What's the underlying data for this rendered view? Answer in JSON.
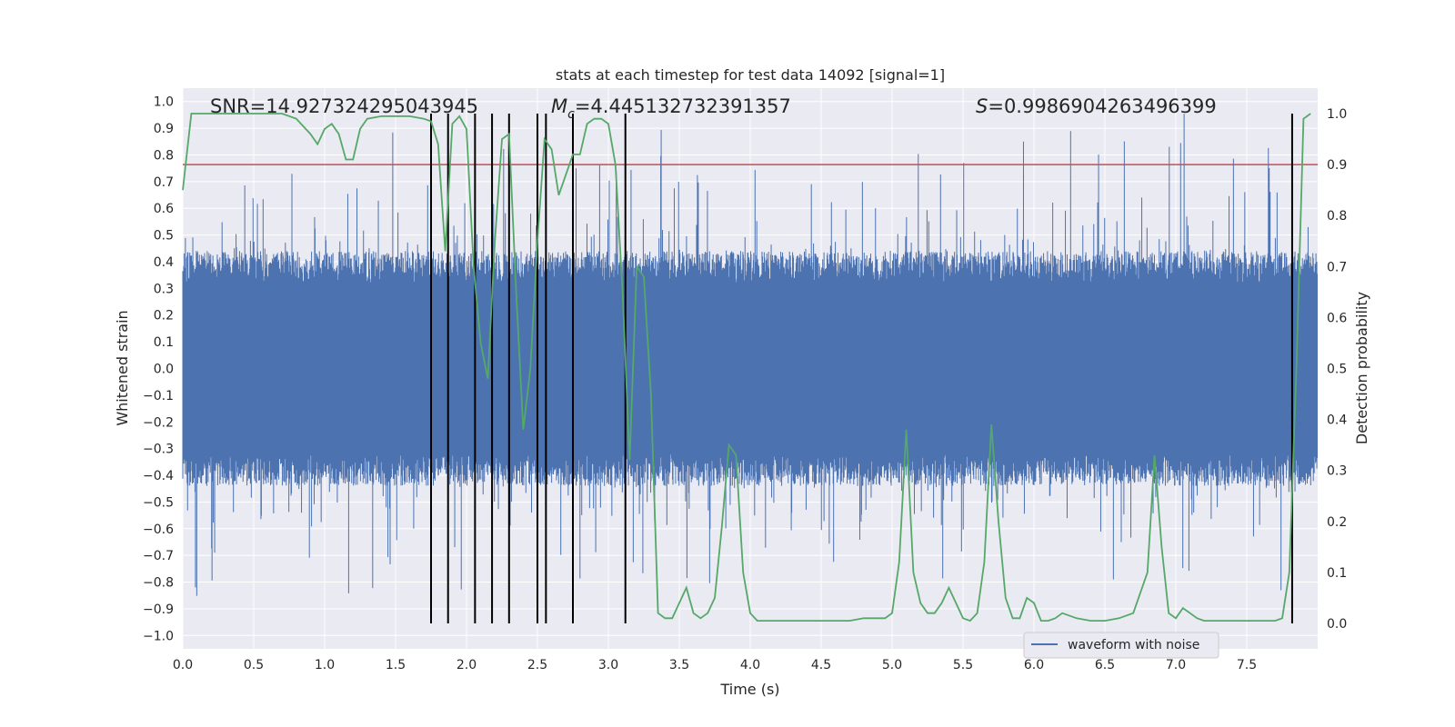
{
  "chart_data": {
    "type": "line",
    "title": "stats at each timestep for test data 14092 [signal=1]",
    "xlabel": "Time (s)",
    "ylabel": "Whitened strain",
    "ylabel_right": "Detection probability",
    "xlim": [
      0,
      8
    ],
    "ylim": [
      -1.05,
      1.05
    ],
    "ylim_right": [
      -0.05,
      1.05
    ],
    "x_ticks": [
      0.0,
      0.5,
      1.0,
      1.5,
      2.0,
      2.5,
      3.0,
      3.5,
      4.0,
      4.5,
      5.0,
      5.5,
      6.0,
      6.5,
      7.0,
      7.5
    ],
    "x_tick_labels": [
      "0.0",
      "0.5",
      "1.0",
      "1.5",
      "2.0",
      "2.5",
      "3.0",
      "3.5",
      "4.0",
      "4.5",
      "5.0",
      "5.5",
      "6.0",
      "6.5",
      "7.0",
      "7.5"
    ],
    "y_ticks": [
      1.0,
      0.9,
      0.8,
      0.7,
      0.6,
      0.5,
      0.4,
      0.3,
      0.2,
      0.1,
      0.0,
      -0.1,
      -0.2,
      -0.3,
      -0.4,
      -0.5,
      -0.6,
      -0.7,
      -0.8,
      -0.9,
      -1.0
    ],
    "y_tick_labels": [
      "1.0",
      "0.9",
      "0.8",
      "0.7",
      "0.6",
      "0.5",
      "0.4",
      "0.3",
      "0.2",
      "0.1",
      "0.0",
      "−0.1",
      "−0.2",
      "−0.3",
      "−0.4",
      "−0.5",
      "−0.6",
      "−0.7",
      "−0.8",
      "−0.9",
      "−1.0"
    ],
    "y_right_ticks": [
      1.0,
      0.9,
      0.8,
      0.7,
      0.6,
      0.5,
      0.4,
      0.3,
      0.2,
      0.1,
      0.0
    ],
    "y_right_tick_labels": [
      "1.0",
      "0.9",
      "0.8",
      "0.7",
      "0.6",
      "0.5",
      "0.4",
      "0.3",
      "0.2",
      "0.1",
      "0.0"
    ],
    "annotations": {
      "snr": "SNR=14.927324295043945",
      "mc_symbol": "M",
      "mc_subscript": "c",
      "mc_value": "=4.445132732391357",
      "s_symbol": "S",
      "s_value": "=0.9986904263496399"
    },
    "threshold": {
      "value": 0.9,
      "axis": "right",
      "color": "#c44e52"
    },
    "event_lines": [
      1.75,
      1.87,
      2.06,
      2.18,
      2.3,
      2.5,
      2.56,
      2.75,
      3.12,
      7.82
    ],
    "legend": {
      "label": "waveform with noise",
      "placement": "lower-right"
    },
    "series": [
      {
        "name": "waveform with noise",
        "axis": "left",
        "color": "#4c72b0",
        "style": "dense-noise",
        "envelope_typical": 0.4,
        "envelope_peak_max": 1.0,
        "envelope_peak_min": -0.94
      },
      {
        "name": "detection probability",
        "axis": "right",
        "color": "#55a868",
        "x": [
          0.0,
          0.06,
          0.3,
          0.7,
          0.8,
          0.9,
          0.95,
          1.0,
          1.05,
          1.1,
          1.15,
          1.2,
          1.25,
          1.3,
          1.4,
          1.6,
          1.7,
          1.75,
          1.8,
          1.85,
          1.9,
          1.95,
          2.0,
          2.05,
          2.1,
          2.15,
          2.2,
          2.25,
          2.3,
          2.35,
          2.4,
          2.45,
          2.5,
          2.55,
          2.6,
          2.65,
          2.7,
          2.75,
          2.8,
          2.85,
          2.9,
          2.95,
          3.0,
          3.05,
          3.1,
          3.15,
          3.2,
          3.25,
          3.3,
          3.35,
          3.4,
          3.45,
          3.5,
          3.55,
          3.6,
          3.65,
          3.7,
          3.75,
          3.8,
          3.85,
          3.9,
          3.95,
          4.0,
          4.05,
          4.1,
          4.2,
          4.5,
          4.7,
          4.8,
          4.9,
          4.95,
          5.0,
          5.05,
          5.1,
          5.15,
          5.2,
          5.25,
          5.3,
          5.35,
          5.4,
          5.45,
          5.5,
          5.55,
          5.6,
          5.65,
          5.7,
          5.75,
          5.8,
          5.85,
          5.9,
          5.95,
          6.0,
          6.05,
          6.1,
          6.15,
          6.2,
          6.3,
          6.4,
          6.5,
          6.6,
          6.7,
          6.8,
          6.85,
          6.9,
          6.95,
          7.0,
          7.05,
          7.1,
          7.15,
          7.2,
          7.3,
          7.4,
          7.5,
          7.6,
          7.7,
          7.75,
          7.8,
          7.85,
          7.9,
          7.95
        ],
        "y": [
          0.85,
          1.0,
          1.0,
          1.0,
          0.99,
          0.96,
          0.94,
          0.97,
          0.98,
          0.96,
          0.91,
          0.91,
          0.97,
          0.99,
          0.995,
          0.995,
          0.99,
          0.985,
          0.94,
          0.73,
          0.98,
          0.995,
          0.97,
          0.7,
          0.55,
          0.48,
          0.75,
          0.95,
          0.96,
          0.65,
          0.38,
          0.5,
          0.75,
          0.95,
          0.93,
          0.84,
          0.88,
          0.92,
          0.92,
          0.98,
          0.99,
          0.99,
          0.98,
          0.9,
          0.65,
          0.32,
          0.7,
          0.68,
          0.45,
          0.02,
          0.01,
          0.01,
          0.04,
          0.07,
          0.02,
          0.01,
          0.02,
          0.05,
          0.19,
          0.35,
          0.33,
          0.1,
          0.02,
          0.005,
          0.005,
          0.005,
          0.005,
          0.005,
          0.01,
          0.01,
          0.01,
          0.02,
          0.12,
          0.38,
          0.1,
          0.04,
          0.02,
          0.02,
          0.04,
          0.07,
          0.04,
          0.01,
          0.005,
          0.02,
          0.12,
          0.39,
          0.2,
          0.05,
          0.01,
          0.01,
          0.05,
          0.04,
          0.005,
          0.005,
          0.01,
          0.02,
          0.01,
          0.005,
          0.005,
          0.01,
          0.02,
          0.1,
          0.33,
          0.15,
          0.02,
          0.01,
          0.03,
          0.02,
          0.01,
          0.005,
          0.005,
          0.005,
          0.005,
          0.005,
          0.005,
          0.01,
          0.1,
          0.5,
          0.99,
          1.0
        ]
      }
    ]
  }
}
